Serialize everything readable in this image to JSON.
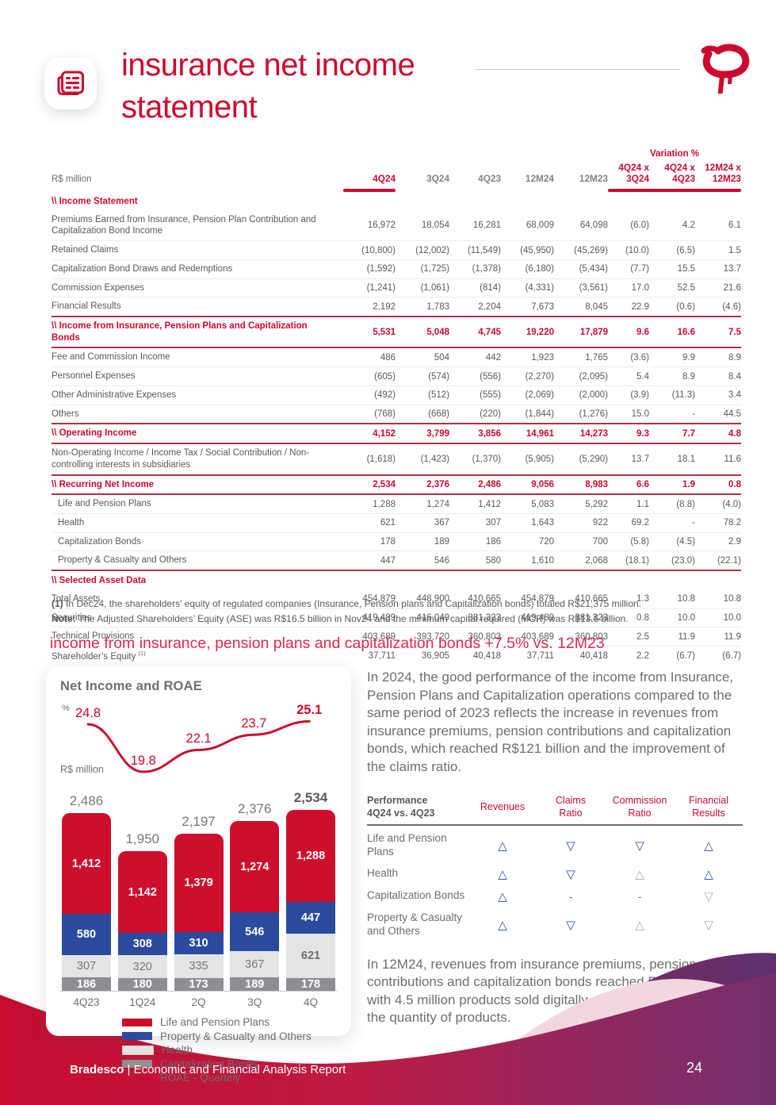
{
  "header": {
    "title_line1": "insurance net income",
    "title_line2": "statement",
    "icon": "newspaper-icon",
    "logo": "bradesco-logo",
    "accent_color": "#CC092F"
  },
  "table": {
    "unit_label": "R$ million",
    "variation_label": "Variation %",
    "period_columns": [
      "4Q24",
      "3Q24",
      "4Q23",
      "12M24",
      "12M23"
    ],
    "variation_columns": [
      {
        "l1": "4Q24 x",
        "l2": "3Q24"
      },
      {
        "l1": "4Q24 x",
        "l2": "4Q23"
      },
      {
        "l1": "12M24 x",
        "l2": "12M23"
      }
    ],
    "rows": [
      {
        "type": "section",
        "label": "\\\\ Income Statement"
      },
      {
        "type": "data",
        "label": "Premiums Earned from Insurance, Pension Plan Contribution and Capitalization Bond Income",
        "values": [
          "16,972",
          "18,054",
          "16,281",
          "68,009",
          "64,098",
          "(6.0)",
          "4.2",
          "6.1"
        ]
      },
      {
        "type": "data",
        "label": "Retained Claims",
        "values": [
          "(10,800)",
          "(12,002)",
          "(11,549)",
          "(45,950)",
          "(45,269)",
          "(10.0)",
          "(6.5)",
          "1.5"
        ]
      },
      {
        "type": "data",
        "label": "Capitalization Bond Draws and Redemptions",
        "values": [
          "(1,592)",
          "(1,725)",
          "(1,378)",
          "(6,180)",
          "(5,434)",
          "(7.7)",
          "15.5",
          "13.7"
        ]
      },
      {
        "type": "data",
        "label": "Commission Expenses",
        "values": [
          "(1,241)",
          "(1,061)",
          "(814)",
          "(4,331)",
          "(3,561)",
          "17.0",
          "52.5",
          "21.6"
        ]
      },
      {
        "type": "data",
        "label": "Financial Results",
        "values": [
          "2,192",
          "1,783",
          "2,204",
          "7,673",
          "8,045",
          "22.9",
          "(0.6)",
          "(4.6)"
        ]
      },
      {
        "type": "total",
        "label": "\\\\ Income from Insurance, Pension Plans and Capitalization Bonds",
        "values": [
          "5,531",
          "5,048",
          "4,745",
          "19,220",
          "17,879",
          "9.6",
          "16.6",
          "7.5"
        ]
      },
      {
        "type": "data",
        "label": "Fee and Commission Income",
        "values": [
          "486",
          "504",
          "442",
          "1,923",
          "1,765",
          "(3.6)",
          "9.9",
          "8.9"
        ]
      },
      {
        "type": "data",
        "label": "Personnel Expenses",
        "values": [
          "(605)",
          "(574)",
          "(556)",
          "(2,270)",
          "(2,095)",
          "5.4",
          "8.9",
          "8.4"
        ]
      },
      {
        "type": "data",
        "label": "Other Administrative Expenses",
        "values": [
          "(492)",
          "(512)",
          "(555)",
          "(2,069)",
          "(2,000)",
          "(3.9)",
          "(11.3)",
          "3.4"
        ]
      },
      {
        "type": "data",
        "label": "Others",
        "values": [
          "(768)",
          "(668)",
          "(220)",
          "(1,844)",
          "(1,276)",
          "15.0",
          "-",
          "44.5"
        ]
      },
      {
        "type": "total",
        "label": "\\\\ Operating Income",
        "values": [
          "4,152",
          "3,799",
          "3,856",
          "14,961",
          "14,273",
          "9.3",
          "7.7",
          "4.8"
        ]
      },
      {
        "type": "data",
        "label": "Non-Operating Income / Income Tax / Social Contribution / Non-controlling interests in subsidiaries",
        "values": [
          "(1,618)",
          "(1,423)",
          "(1,370)",
          "(5,905)",
          "(5,290)",
          "13.7",
          "18.1",
          "11.6"
        ]
      },
      {
        "type": "total",
        "label": "\\\\ Recurring Net Income",
        "values": [
          "2,534",
          "2,376",
          "2,486",
          "9,056",
          "8,983",
          "6.6",
          "1.9",
          "0.8"
        ]
      },
      {
        "type": "indent",
        "label": "Life and Pension Plans",
        "values": [
          "1,288",
          "1,274",
          "1,412",
          "5,083",
          "5,292",
          "1.1",
          "(8.8)",
          "(4.0)"
        ]
      },
      {
        "type": "indent",
        "label": "Health",
        "values": [
          "621",
          "367",
          "307",
          "1,643",
          "922",
          "69.2",
          "-",
          "78.2"
        ]
      },
      {
        "type": "indent",
        "label": "Capitalization Bonds",
        "values": [
          "178",
          "189",
          "186",
          "720",
          "700",
          "(5.8)",
          "(4.5)",
          "2.9"
        ]
      },
      {
        "type": "indent",
        "label": "Property & Casualty and Others",
        "values": [
          "447",
          "546",
          "580",
          "1,610",
          "2,068",
          "(18.1)",
          "(23.0)",
          "(22.1)"
        ]
      },
      {
        "type": "section",
        "label": "\\\\ Selected Asset Data"
      },
      {
        "type": "data",
        "label": "Total Assets",
        "values": [
          "454,879",
          "448,900",
          "410,665",
          "454,879",
          "410,665",
          "1.3",
          "10.8",
          "10.8"
        ]
      },
      {
        "type": "data",
        "label": "Securities",
        "values": [
          "419,489",
          "416,049",
          "381,323",
          "419,489",
          "381,323",
          "0.8",
          "10.0",
          "10.0"
        ]
      },
      {
        "type": "data",
        "label": "Technical Provisions",
        "values": [
          "403,689",
          "393,720",
          "360,803",
          "403,689",
          "360,803",
          "2.5",
          "11.9",
          "11.9"
        ]
      },
      {
        "type": "data",
        "label": "Shareholder’s Equity",
        "sup": "(1)",
        "values": [
          "37,711",
          "36,905",
          "40,418",
          "37,711",
          "40,418",
          "2.2",
          "(6.7)",
          "(6.7)"
        ]
      }
    ]
  },
  "footnotes": {
    "fn1_bold": "(1)",
    "fn1_text": " In Dec24, the shareholders’ equity of regulated companies (Insurance, Pension plans and Capitalization bonds) totaled R$21,375 million.",
    "note_bold": "Note:",
    "note_text": " The Adjusted Shareholders’ Equity (ASE) was R$16.5 billion in Nov24 and the minimum capital required (MCR) was R$13.6 billion."
  },
  "subtitle": "income from insurance, pension plans and capitalization bonds +7.5% vs. 12M23",
  "chart_data": {
    "type": "bar",
    "subtype": "stacked-bar-with-line",
    "title": "Net Income and ROAE",
    "pct_label": "%",
    "unit_label": "R$ million",
    "categories": [
      "4Q23",
      "1Q24",
      "2Q",
      "3Q",
      "4Q"
    ],
    "totals": [
      2486,
      1950,
      2197,
      2376,
      2534
    ],
    "totals_labels": [
      "2,486",
      "1,950",
      "2,197",
      "2,376",
      "2,534"
    ],
    "series": [
      {
        "name": "Life and Pension Plans",
        "color": "#CE0E2D",
        "values": [
          1412,
          1142,
          1379,
          1274,
          1288
        ],
        "labels": [
          "1,412",
          "1,142",
          "1,379",
          "1,274",
          "1,288"
        ]
      },
      {
        "name": "Property & Casualty and Others",
        "color": "#2B4B9F",
        "values": [
          580,
          308,
          310,
          546,
          447
        ],
        "labels": [
          "580",
          "308",
          "310",
          "546",
          "447"
        ]
      },
      {
        "name": "Health",
        "color": "#E4E4E4",
        "values": [
          307,
          320,
          335,
          367,
          621
        ],
        "labels": [
          "307",
          "320",
          "335",
          "367",
          "621"
        ]
      },
      {
        "name": "Capitalization Bonds",
        "color": "#8D8F92",
        "values": [
          186,
          180,
          173,
          189,
          178
        ],
        "labels": [
          "186",
          "180",
          "173",
          "189",
          "178"
        ]
      }
    ],
    "line": {
      "name": "ROAE - Quartely",
      "color": "#C8102E",
      "values": [
        24.8,
        19.8,
        22.1,
        23.7,
        25.1
      ],
      "labels": [
        "24.8",
        "19.8",
        "22.1",
        "23.7",
        "25.1"
      ]
    },
    "legend_position": "bottom",
    "grid": false
  },
  "right": {
    "para1": "In 2024, the good performance of the income from Insurance, Pension Plans and Capitalization operations compared to the same period of 2023 reflects the increase in revenues from insurance premiums, pension contributions and capitalization bonds, which reached R$121 billion and the improvement of the claims ratio.",
    "para2": "In 12M24, revenues from insurance premiums, pension contributions and capitalization bonds reached R$5.9 billion, with 4.5 million products sold digitally, and a 38.8% increase in the quantity of products.",
    "performance": {
      "header_l1": "Performance",
      "header_l2": "4Q24 vs. 4Q23",
      "columns": [
        {
          "l1": "Revenues",
          "l2": ""
        },
        {
          "l1": "Claims",
          "l2": "Ratio"
        },
        {
          "l1": "Commission",
          "l2": "Ratio"
        },
        {
          "l1": "Financial",
          "l2": "Results"
        }
      ],
      "up_color": "#2B4B9F",
      "neutral_color": "#A7A9AC",
      "rows": [
        {
          "label": "Life and Pension Plans",
          "cells": [
            "up-blue",
            "down-blue",
            "down-blue",
            "up-blue"
          ]
        },
        {
          "label": "Health",
          "cells": [
            "up-blue",
            "down-blue",
            "up-gray",
            "up-blue"
          ]
        },
        {
          "label": "Capitalization Bonds",
          "cells": [
            "up-blue",
            "dash",
            "dash",
            "down-gray"
          ]
        },
        {
          "label": "Property & Casualty and Others",
          "cells": [
            "up-blue",
            "down-blue",
            "up-gray",
            "down-gray"
          ]
        }
      ]
    }
  },
  "footer": {
    "brand": "Bradesco",
    "divider": "|",
    "report": "Economic and Financial Analysis Report",
    "page": "24"
  }
}
